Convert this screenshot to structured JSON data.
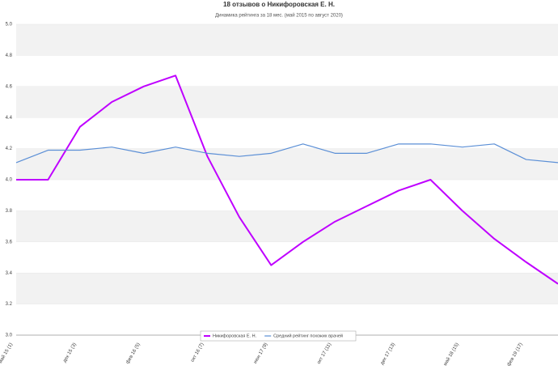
{
  "chart_data": {
    "type": "line",
    "title": "18 отзывов о Никифоровская Е. Н.",
    "subtitle": "Динамика рейтинга за 18 мес. (май 2015 по август 2020)",
    "categories": [
      "май 15 (1)",
      null,
      "дек 15 (3)",
      null,
      "фев 16 (5)",
      null,
      "окт 16 (7)",
      null,
      "июн 17 (9)",
      null,
      "окт 17 (11)",
      null,
      "дек 17 (13)",
      null,
      "май 18 (15)",
      null,
      "фев 19 (17)",
      null
    ],
    "series": [
      {
        "name": "Никифоровская Е. Н.",
        "color": "#bf00ff",
        "values": [
          4.0,
          4.0,
          4.34,
          4.5,
          4.6,
          4.67,
          4.15,
          3.76,
          3.45,
          3.6,
          3.73,
          3.83,
          3.93,
          4.0,
          3.8,
          3.62,
          3.47,
          3.33
        ]
      },
      {
        "name": "Средний рейтинг похожих врачей",
        "color": "#5b8fd6",
        "values": [
          4.11,
          4.19,
          4.19,
          4.21,
          4.17,
          4.21,
          4.17,
          4.15,
          4.17,
          4.23,
          4.17,
          4.17,
          4.23,
          4.23,
          4.21,
          4.23,
          4.13,
          4.11
        ]
      }
    ],
    "ylim": [
      3,
      5
    ],
    "yticks": [
      {
        "value": 3,
        "label": "3.0"
      },
      3.2,
      3.4,
      3.6,
      3.8,
      {
        "value": 4,
        "label": "4.0"
      },
      4.2,
      4.4,
      4.6,
      4.8,
      {
        "value": 5,
        "label": "5.0"
      }
    ],
    "bands": true,
    "legend": "bottom"
  }
}
